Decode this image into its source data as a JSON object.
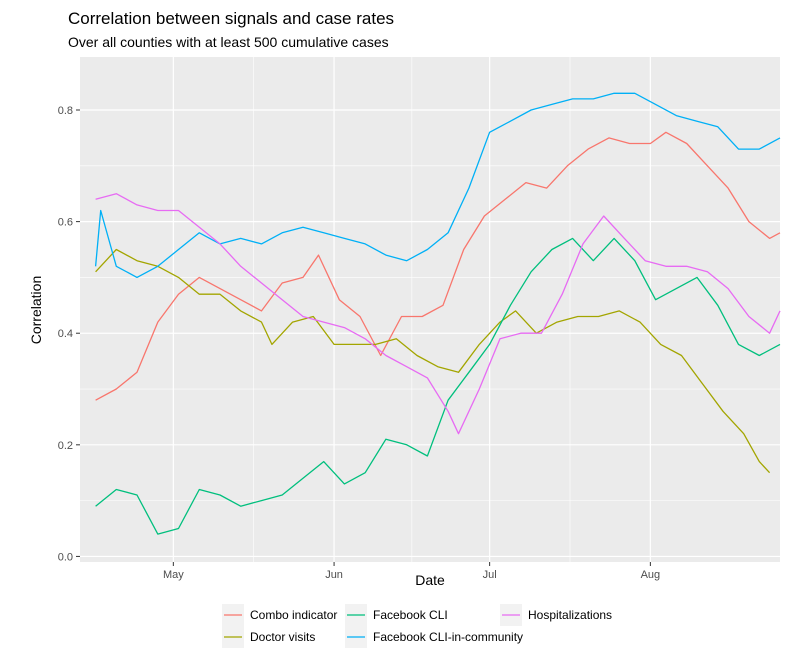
{
  "chart_data": {
    "type": "line",
    "title": "Correlation between signals and case rates",
    "subtitle": "Over all counties with at least 500 cumulative cases",
    "xlabel": "Date",
    "ylabel": "Correlation",
    "x_axis": {
      "type": "date",
      "range": [
        "2020-04-13",
        "2020-08-26"
      ],
      "ticks": [
        {
          "date": "2020-05-01",
          "label": "May"
        },
        {
          "date": "2020-06-01",
          "label": "Jun"
        },
        {
          "date": "2020-07-01",
          "label": "Jul"
        },
        {
          "date": "2020-08-01",
          "label": "Aug"
        }
      ]
    },
    "y_axis": {
      "range": [
        -0.01,
        0.895
      ],
      "ticks": [
        0.0,
        0.2,
        0.4,
        0.6,
        0.8
      ],
      "tick_labels": [
        "0.0",
        "0.2",
        "0.4",
        "0.6",
        "0.8"
      ]
    },
    "grid": true,
    "legend_position": "bottom",
    "series": [
      {
        "name": "Combo indicator",
        "color": "#F8766D",
        "points": [
          [
            "2020-04-16",
            0.28
          ],
          [
            "2020-04-20",
            0.3
          ],
          [
            "2020-04-24",
            0.33
          ],
          [
            "2020-04-28",
            0.42
          ],
          [
            "2020-05-02",
            0.47
          ],
          [
            "2020-05-06",
            0.5
          ],
          [
            "2020-05-10",
            0.48
          ],
          [
            "2020-05-14",
            0.46
          ],
          [
            "2020-05-18",
            0.44
          ],
          [
            "2020-05-22",
            0.49
          ],
          [
            "2020-05-26",
            0.5
          ],
          [
            "2020-05-29",
            0.54
          ],
          [
            "2020-06-02",
            0.46
          ],
          [
            "2020-06-06",
            0.43
          ],
          [
            "2020-06-10",
            0.36
          ],
          [
            "2020-06-14",
            0.43
          ],
          [
            "2020-06-18",
            0.43
          ],
          [
            "2020-06-22",
            0.45
          ],
          [
            "2020-06-26",
            0.55
          ],
          [
            "2020-06-30",
            0.61
          ],
          [
            "2020-07-04",
            0.64
          ],
          [
            "2020-07-08",
            0.67
          ],
          [
            "2020-07-12",
            0.66
          ],
          [
            "2020-07-16",
            0.7
          ],
          [
            "2020-07-20",
            0.73
          ],
          [
            "2020-07-24",
            0.75
          ],
          [
            "2020-07-28",
            0.74
          ],
          [
            "2020-08-01",
            0.74
          ],
          [
            "2020-08-04",
            0.76
          ],
          [
            "2020-08-08",
            0.74
          ],
          [
            "2020-08-12",
            0.7
          ],
          [
            "2020-08-16",
            0.66
          ],
          [
            "2020-08-20",
            0.6
          ],
          [
            "2020-08-24",
            0.57
          ],
          [
            "2020-08-26",
            0.58
          ]
        ]
      },
      {
        "name": "Doctor visits",
        "color": "#A3A500",
        "points": [
          [
            "2020-04-16",
            0.51
          ],
          [
            "2020-04-20",
            0.55
          ],
          [
            "2020-04-24",
            0.53
          ],
          [
            "2020-04-28",
            0.52
          ],
          [
            "2020-05-02",
            0.5
          ],
          [
            "2020-05-06",
            0.47
          ],
          [
            "2020-05-10",
            0.47
          ],
          [
            "2020-05-14",
            0.44
          ],
          [
            "2020-05-18",
            0.42
          ],
          [
            "2020-05-20",
            0.38
          ],
          [
            "2020-05-24",
            0.42
          ],
          [
            "2020-05-28",
            0.43
          ],
          [
            "2020-06-01",
            0.38
          ],
          [
            "2020-06-05",
            0.38
          ],
          [
            "2020-06-09",
            0.38
          ],
          [
            "2020-06-13",
            0.39
          ],
          [
            "2020-06-17",
            0.36
          ],
          [
            "2020-06-21",
            0.34
          ],
          [
            "2020-06-25",
            0.33
          ],
          [
            "2020-06-29",
            0.38
          ],
          [
            "2020-07-03",
            0.42
          ],
          [
            "2020-07-06",
            0.44
          ],
          [
            "2020-07-10",
            0.4
          ],
          [
            "2020-07-14",
            0.42
          ],
          [
            "2020-07-18",
            0.43
          ],
          [
            "2020-07-22",
            0.43
          ],
          [
            "2020-07-26",
            0.44
          ],
          [
            "2020-07-30",
            0.42
          ],
          [
            "2020-08-03",
            0.38
          ],
          [
            "2020-08-07",
            0.36
          ],
          [
            "2020-08-11",
            0.31
          ],
          [
            "2020-08-15",
            0.26
          ],
          [
            "2020-08-19",
            0.22
          ],
          [
            "2020-08-22",
            0.17
          ],
          [
            "2020-08-24",
            0.15
          ]
        ]
      },
      {
        "name": "Facebook CLI",
        "color": "#00BF7D",
        "points": [
          [
            "2020-04-16",
            0.09
          ],
          [
            "2020-04-20",
            0.12
          ],
          [
            "2020-04-24",
            0.11
          ],
          [
            "2020-04-28",
            0.04
          ],
          [
            "2020-05-02",
            0.05
          ],
          [
            "2020-05-06",
            0.12
          ],
          [
            "2020-05-10",
            0.11
          ],
          [
            "2020-05-14",
            0.09
          ],
          [
            "2020-05-18",
            0.1
          ],
          [
            "2020-05-22",
            0.11
          ],
          [
            "2020-05-26",
            0.14
          ],
          [
            "2020-05-30",
            0.17
          ],
          [
            "2020-06-03",
            0.13
          ],
          [
            "2020-06-07",
            0.15
          ],
          [
            "2020-06-11",
            0.21
          ],
          [
            "2020-06-15",
            0.2
          ],
          [
            "2020-06-19",
            0.18
          ],
          [
            "2020-06-23",
            0.28
          ],
          [
            "2020-06-27",
            0.33
          ],
          [
            "2020-07-01",
            0.38
          ],
          [
            "2020-07-05",
            0.45
          ],
          [
            "2020-07-09",
            0.51
          ],
          [
            "2020-07-13",
            0.55
          ],
          [
            "2020-07-17",
            0.57
          ],
          [
            "2020-07-21",
            0.53
          ],
          [
            "2020-07-25",
            0.57
          ],
          [
            "2020-07-29",
            0.53
          ],
          [
            "2020-08-02",
            0.46
          ],
          [
            "2020-08-06",
            0.48
          ],
          [
            "2020-08-10",
            0.5
          ],
          [
            "2020-08-14",
            0.45
          ],
          [
            "2020-08-18",
            0.38
          ],
          [
            "2020-08-22",
            0.36
          ],
          [
            "2020-08-26",
            0.38
          ]
        ]
      },
      {
        "name": "Facebook CLI-in-community",
        "color": "#00B0F6",
        "points": [
          [
            "2020-04-16",
            0.52
          ],
          [
            "2020-04-17",
            0.62
          ],
          [
            "2020-04-20",
            0.52
          ],
          [
            "2020-04-24",
            0.5
          ],
          [
            "2020-04-28",
            0.52
          ],
          [
            "2020-05-02",
            0.55
          ],
          [
            "2020-05-06",
            0.58
          ],
          [
            "2020-05-10",
            0.56
          ],
          [
            "2020-05-14",
            0.57
          ],
          [
            "2020-05-18",
            0.56
          ],
          [
            "2020-05-22",
            0.58
          ],
          [
            "2020-05-26",
            0.59
          ],
          [
            "2020-05-30",
            0.58
          ],
          [
            "2020-06-03",
            0.57
          ],
          [
            "2020-06-07",
            0.56
          ],
          [
            "2020-06-11",
            0.54
          ],
          [
            "2020-06-15",
            0.53
          ],
          [
            "2020-06-19",
            0.55
          ],
          [
            "2020-06-23",
            0.58
          ],
          [
            "2020-06-27",
            0.66
          ],
          [
            "2020-07-01",
            0.76
          ],
          [
            "2020-07-05",
            0.78
          ],
          [
            "2020-07-09",
            0.8
          ],
          [
            "2020-07-13",
            0.81
          ],
          [
            "2020-07-17",
            0.82
          ],
          [
            "2020-07-21",
            0.82
          ],
          [
            "2020-07-25",
            0.83
          ],
          [
            "2020-07-29",
            0.83
          ],
          [
            "2020-08-02",
            0.81
          ],
          [
            "2020-08-06",
            0.79
          ],
          [
            "2020-08-10",
            0.78
          ],
          [
            "2020-08-14",
            0.77
          ],
          [
            "2020-08-18",
            0.73
          ],
          [
            "2020-08-22",
            0.73
          ],
          [
            "2020-08-26",
            0.75
          ]
        ]
      },
      {
        "name": "Hospitalizations",
        "color": "#E76BF3",
        "points": [
          [
            "2020-04-16",
            0.64
          ],
          [
            "2020-04-20",
            0.65
          ],
          [
            "2020-04-24",
            0.63
          ],
          [
            "2020-04-28",
            0.62
          ],
          [
            "2020-05-02",
            0.62
          ],
          [
            "2020-05-06",
            0.59
          ],
          [
            "2020-05-10",
            0.56
          ],
          [
            "2020-05-14",
            0.52
          ],
          [
            "2020-05-18",
            0.49
          ],
          [
            "2020-05-22",
            0.46
          ],
          [
            "2020-05-26",
            0.43
          ],
          [
            "2020-05-30",
            0.42
          ],
          [
            "2020-06-03",
            0.41
          ],
          [
            "2020-06-07",
            0.39
          ],
          [
            "2020-06-11",
            0.36
          ],
          [
            "2020-06-15",
            0.34
          ],
          [
            "2020-06-19",
            0.32
          ],
          [
            "2020-06-23",
            0.26
          ],
          [
            "2020-06-25",
            0.22
          ],
          [
            "2020-06-29",
            0.3
          ],
          [
            "2020-07-03",
            0.39
          ],
          [
            "2020-07-07",
            0.4
          ],
          [
            "2020-07-11",
            0.4
          ],
          [
            "2020-07-15",
            0.47
          ],
          [
            "2020-07-19",
            0.56
          ],
          [
            "2020-07-23",
            0.61
          ],
          [
            "2020-07-27",
            0.57
          ],
          [
            "2020-07-31",
            0.53
          ],
          [
            "2020-08-04",
            0.52
          ],
          [
            "2020-08-08",
            0.52
          ],
          [
            "2020-08-12",
            0.51
          ],
          [
            "2020-08-16",
            0.48
          ],
          [
            "2020-08-20",
            0.43
          ],
          [
            "2020-08-24",
            0.4
          ],
          [
            "2020-08-26",
            0.44
          ]
        ]
      }
    ]
  }
}
